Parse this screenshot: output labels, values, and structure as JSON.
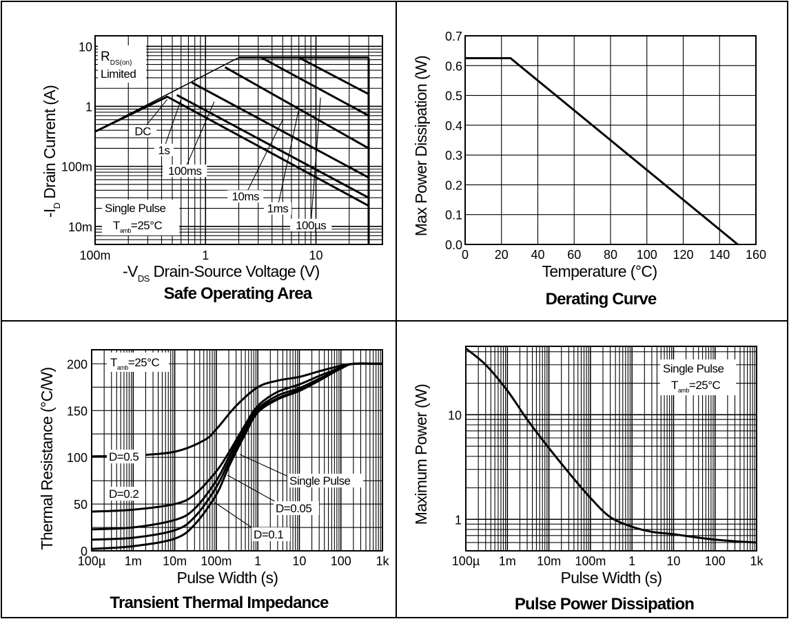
{
  "chart_data": [
    {
      "type": "line",
      "title": "Safe Operating Area",
      "xlabel": "-V",
      "xlabel_sub": "DS",
      "xlabel_rest": " Drain-Source Voltage (V)",
      "ylabel": "-I",
      "ylabel_sub": "D",
      "ylabel_rest": " Drain Current (A)",
      "x_scale": "log",
      "y_scale": "log",
      "xlim": [
        0.1,
        40
      ],
      "ylim": [
        0.005,
        15
      ],
      "x_ticks": [
        {
          "v": 0.1,
          "label": "100m"
        },
        {
          "v": 1,
          "label": "1"
        },
        {
          "v": 10,
          "label": "10"
        }
      ],
      "y_ticks": [
        {
          "v": 10,
          "label": "10"
        },
        {
          "v": 1,
          "label": "1"
        },
        {
          "v": 0.1,
          "label": "100m"
        },
        {
          "v": 0.01,
          "label": "10m"
        }
      ],
      "grid": true,
      "rds_label_main": "R",
      "rds_label_sub": "DS(on)",
      "rds_label_rest": "Limited",
      "note_line1": "Single Pulse",
      "note_line2_main": "T",
      "note_line2_sub": "amb",
      "note_line2_rest": "=25°C",
      "series": [
        {
          "name": "DC",
          "x": [
            0.1,
            0.45,
            30
          ],
          "y": [
            0.38,
            1.45,
            0.022
          ],
          "label_x": 0.27,
          "label_y": 0.33
        },
        {
          "name": "1s",
          "x": [
            0.55,
            30
          ],
          "y": [
            1.55,
            0.03
          ],
          "label_x": 0.42,
          "label_y": 0.16
        },
        {
          "name": "100ms",
          "x": [
            0.75,
            30
          ],
          "y": [
            2.5,
            0.065
          ],
          "label_x": 0.65,
          "label_y": 0.072
        },
        {
          "name": "10ms",
          "x": [
            1.5,
            30
          ],
          "y": [
            4.5,
            0.2
          ],
          "label_x": 2.3,
          "label_y": 0.027
        },
        {
          "name": "1ms",
          "x": [
            3.2,
            30
          ],
          "y": [
            6.5,
            0.7
          ],
          "label_x": 4.5,
          "label_y": 0.017
        },
        {
          "name": "100µs",
          "x": [
            7.0,
            30
          ],
          "y": [
            6.5,
            1.6
          ],
          "label_x": 9.0,
          "label_y": 0.009
        }
      ],
      "rds_line": {
        "x": [
          0.1,
          2.0,
          30
        ],
        "y": [
          0.38,
          6.5,
          6.5
        ]
      }
    },
    {
      "type": "line",
      "title": "Derating Curve",
      "xlabel": "Temperature (°C)",
      "ylabel": "Max Power Dissipation (W)",
      "xlim": [
        0,
        160
      ],
      "ylim": [
        0,
        0.7
      ],
      "x_ticks": [
        "0",
        "20",
        "40",
        "60",
        "80",
        "100",
        "120",
        "140",
        "160"
      ],
      "y_ticks": [
        "0.0",
        "0.1",
        "0.2",
        "0.3",
        "0.4",
        "0.5",
        "0.6",
        "0.7"
      ],
      "grid": true,
      "series": [
        {
          "x": [
            0,
            25,
            150
          ],
          "y": [
            0.625,
            0.625,
            0
          ]
        }
      ]
    },
    {
      "type": "line",
      "title": "Transient Thermal Impedance",
      "xlabel": "Pulse Width (s)",
      "ylabel": "Thermal Resistance (°C/W)",
      "x_scale": "log",
      "xlim": [
        0.0001,
        1000
      ],
      "ylim": [
        0,
        215
      ],
      "x_ticks": [
        {
          "v": 0.0001,
          "label": "100µ"
        },
        {
          "v": 0.001,
          "label": "1m"
        },
        {
          "v": 0.01,
          "label": "10m"
        },
        {
          "v": 0.1,
          "label": "100m"
        },
        {
          "v": 1,
          "label": "1"
        },
        {
          "v": 10,
          "label": "10"
        },
        {
          "v": 100,
          "label": "100"
        },
        {
          "v": 1000,
          "label": "1k"
        }
      ],
      "y_ticks": [
        {
          "v": 0,
          "label": "0"
        },
        {
          "v": 50,
          "label": "50"
        },
        {
          "v": 100,
          "label": "100"
        },
        {
          "v": 150,
          "label": "150"
        },
        {
          "v": 200,
          "label": "200"
        }
      ],
      "grid": true,
      "note_main": "T",
      "note_sub": "amb",
      "note_rest": "=25°C",
      "series": [
        {
          "name": "D=0.5",
          "x": [
            0.0001,
            0.001,
            0.01,
            0.05,
            0.1,
            0.3,
            1,
            3,
            10,
            30,
            100,
            200,
            1000
          ],
          "y": [
            101,
            102,
            106,
            118,
            130,
            155,
            175,
            182,
            186,
            192,
            198,
            200,
            200
          ]
        },
        {
          "name": "D=0.2",
          "x": [
            0.0001,
            0.001,
            0.01,
            0.03,
            0.1,
            0.2,
            0.5,
            1,
            3,
            10,
            30,
            100,
            200,
            1000
          ],
          "y": [
            42,
            44,
            50,
            60,
            85,
            105,
            135,
            155,
            170,
            178,
            187,
            196,
            200,
            200
          ]
        },
        {
          "name": "D=0.1",
          "x": [
            0.0001,
            0.001,
            0.01,
            0.03,
            0.1,
            0.2,
            0.5,
            1,
            3,
            10,
            30,
            100,
            200,
            1000
          ],
          "y": [
            23,
            25,
            33,
            45,
            75,
            100,
            132,
            152,
            166,
            174,
            184,
            195,
            200,
            200
          ]
        },
        {
          "name": "D=0.05",
          "x": [
            0.0001,
            0.001,
            0.01,
            0.03,
            0.1,
            0.2,
            0.5,
            1,
            3,
            10,
            30,
            100,
            200,
            1000
          ],
          "y": [
            12,
            14,
            22,
            36,
            68,
            95,
            128,
            150,
            163,
            172,
            183,
            195,
            200,
            200
          ]
        },
        {
          "name": "Single Pulse",
          "x": [
            0.0001,
            0.001,
            0.01,
            0.03,
            0.1,
            0.2,
            0.5,
            1,
            3,
            10,
            30,
            100,
            200,
            1000
          ],
          "y": [
            2,
            5,
            13,
            28,
            60,
            90,
            125,
            148,
            162,
            171,
            182,
            195,
            200,
            200
          ]
        }
      ]
    },
    {
      "type": "line",
      "title": "Pulse Power Dissipation",
      "xlabel": "Pulse Width (s)",
      "ylabel": "Maximum Power (W)",
      "x_scale": "log",
      "y_scale": "log",
      "xlim": [
        0.0001,
        1000
      ],
      "ylim": [
        0.5,
        45
      ],
      "x_ticks": [
        {
          "v": 0.0001,
          "label": "100µ"
        },
        {
          "v": 0.001,
          "label": "1m"
        },
        {
          "v": 0.01,
          "label": "10m"
        },
        {
          "v": 0.1,
          "label": "100m"
        },
        {
          "v": 1,
          "label": "1"
        },
        {
          "v": 10,
          "label": "10"
        },
        {
          "v": 100,
          "label": "100"
        },
        {
          "v": 1000,
          "label": "1k"
        }
      ],
      "y_ticks": [
        {
          "v": 10,
          "label": "10"
        },
        {
          "v": 1,
          "label": "1"
        }
      ],
      "grid": true,
      "note_line1": "Single Pulse",
      "note_line2_main": "T",
      "note_line2_sub": "amb",
      "note_line2_rest": "=25°C",
      "series": [
        {
          "x": [
            0.0001,
            0.0003,
            0.001,
            0.003,
            0.01,
            0.03,
            0.1,
            0.3,
            1,
            3,
            10,
            100,
            1000
          ],
          "y": [
            43,
            30,
            17,
            9,
            4.8,
            2.8,
            1.6,
            1.05,
            0.85,
            0.76,
            0.72,
            0.64,
            0.6
          ]
        }
      ]
    }
  ]
}
